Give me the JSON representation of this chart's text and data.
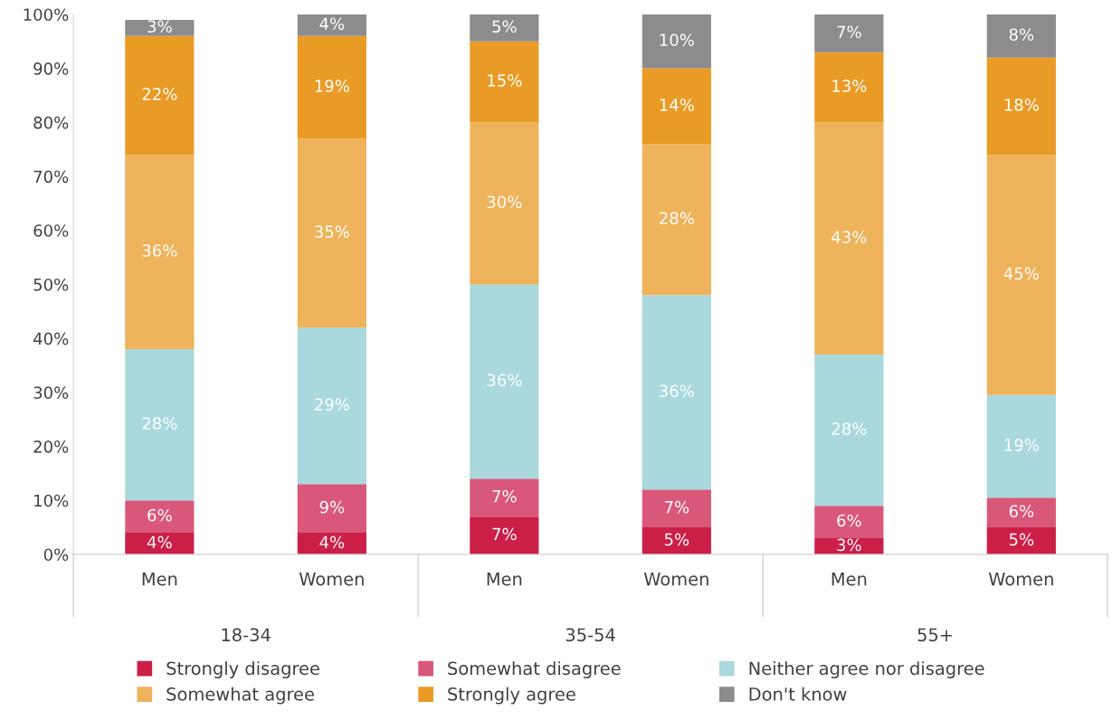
{
  "chart_data": {
    "type": "bar",
    "stacked": true,
    "categories": [
      "Men",
      "Women",
      "Men",
      "Women",
      "Men",
      "Women"
    ],
    "annotations": [
      "18-34",
      "35-54",
      "55+"
    ],
    "series": [
      {
        "name": "Strongly disagree",
        "color": "#cc1f48",
        "values": [
          4,
          4,
          7,
          5,
          3,
          5
        ],
        "value_labels": [
          "4%",
          "4%",
          "7%",
          "5%",
          "3%",
          "5%"
        ]
      },
      {
        "name": "Somewhat disagree",
        "color": "#d9587a",
        "values": [
          6,
          9,
          7,
          7,
          6,
          5.5
        ],
        "value_labels": [
          "6%",
          "9%",
          "7%",
          "7%",
          "6%",
          "6%"
        ]
      },
      {
        "name": "Neither agree nor disagree",
        "color": "#a9d8dd",
        "values": [
          28,
          29,
          36,
          36,
          28,
          19
        ],
        "value_labels": [
          "28%",
          "29%",
          "36%",
          "36%",
          "28%",
          "19%"
        ]
      },
      {
        "name": "Somewhat agree",
        "color": "#eeb35b",
        "values": [
          36,
          35,
          30,
          28,
          43,
          44.5
        ],
        "value_labels": [
          "36%",
          "35%",
          "30%",
          "28%",
          "43%",
          "45%"
        ]
      },
      {
        "name": "Strongly agree",
        "color": "#e99b25",
        "values": [
          22,
          19,
          15,
          14,
          13,
          18
        ],
        "value_labels": [
          "22%",
          "19%",
          "15%",
          "14%",
          "13%",
          "18%"
        ]
      },
      {
        "name": "Don't know",
        "color": "#8c8c8c",
        "values": [
          3,
          4,
          5,
          10,
          7,
          8
        ],
        "value_labels": [
          "3%",
          "4%",
          "5%",
          "10%",
          "7%",
          "8%"
        ]
      }
    ],
    "ylim": [
      0,
      100
    ],
    "yticks": [
      {
        "value": 0,
        "label": "0%"
      },
      {
        "value": 10,
        "label": "10%"
      },
      {
        "value": 20,
        "label": "20%"
      },
      {
        "value": 30,
        "label": "30%"
      },
      {
        "value": 40,
        "label": "40%"
      },
      {
        "value": 50,
        "label": "50%"
      },
      {
        "value": 60,
        "label": "60%"
      },
      {
        "value": 70,
        "label": "70%"
      },
      {
        "value": 80,
        "label": "80%"
      },
      {
        "value": 90,
        "label": "90%"
      },
      {
        "value": 100,
        "label": "100%"
      }
    ],
    "grid": false,
    "legend": "bottom"
  }
}
